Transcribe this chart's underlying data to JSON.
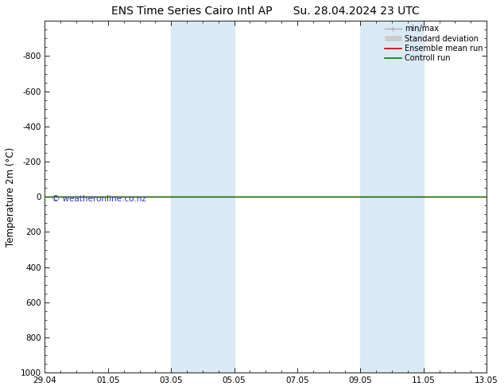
{
  "title_left": "ENS Time Series Cairo Intl AP",
  "title_right": "Su. 28.04.2024 23 UTC",
  "ylabel": "Temperature 2m (°C)",
  "ylim_top": -1000,
  "ylim_bottom": 1000,
  "yticks": [
    -800,
    -600,
    -400,
    -200,
    0,
    200,
    400,
    600,
    800,
    1000
  ],
  "x_start": 0,
  "x_end": 14,
  "xtick_positions": [
    0,
    2,
    4,
    6,
    8,
    10,
    12,
    14
  ],
  "xtick_labels": [
    "29.04",
    "01.05",
    "03.05",
    "05.05",
    "07.05",
    "09.05",
    "11.05",
    "13.05"
  ],
  "shaded_bands": [
    [
      4.0,
      4.85
    ],
    [
      4.85,
      6.0
    ],
    [
      10.0,
      10.85
    ],
    [
      10.85,
      12.0
    ]
  ],
  "shade_color": "#daeaf5",
  "green_line_y": 0,
  "green_line_color": "#008000",
  "red_line_color": "#cc0000",
  "copyright_text": "© weatheronline.co.nz",
  "copyright_color": "#3333bb",
  "copyright_fontsize": 7.5,
  "legend_items": [
    {
      "label": "min/max",
      "color": "#aaaaaa",
      "lw": 1.0
    },
    {
      "label": "Standard deviation",
      "color": "#cccccc",
      "lw": 5
    },
    {
      "label": "Ensemble mean run",
      "color": "#cc0000",
      "lw": 1.2
    },
    {
      "label": "Controll run",
      "color": "#008000",
      "lw": 1.2
    }
  ],
  "bg_color": "#ffffff",
  "axis_bg_color": "#ffffff",
  "title_fontsize": 10,
  "tick_fontsize": 7.5,
  "ylabel_fontsize": 8.5
}
